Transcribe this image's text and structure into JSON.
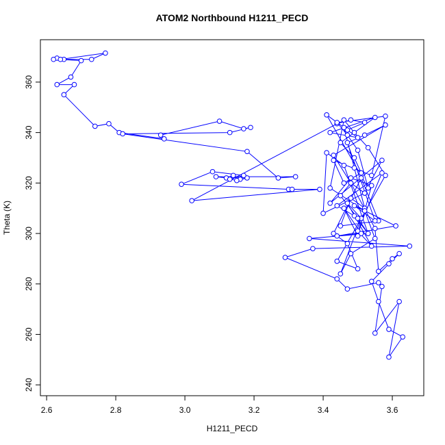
{
  "chart_data": {
    "type": "line",
    "title": "ATOM2 Northbound H1211_PECD",
    "x_label": "H1211_PECD",
    "y_label": "Theta (K)",
    "color": "#0000ff",
    "markers": true,
    "xlim": [
      2.582,
      3.691
    ],
    "ylim": [
      235.7,
      376.8
    ],
    "xticks": [
      {
        "value": 2.6,
        "label": "2.6"
      },
      {
        "value": 2.8,
        "label": "2.8"
      },
      {
        "value": 3.0,
        "label": "3.0"
      },
      {
        "value": 3.2,
        "label": "3.2"
      },
      {
        "value": 3.4,
        "label": "3.4"
      },
      {
        "value": 3.6,
        "label": "3.6"
      }
    ],
    "yticks": [
      240,
      260,
      280,
      300,
      320,
      340,
      360
    ],
    "x": [
      2.63,
      2.62,
      2.65,
      2.73,
      2.77,
      2.64,
      2.7,
      2.67,
      2.63,
      2.68,
      2.65,
      2.74,
      2.78,
      2.81,
      2.94,
      2.93,
      3.1,
      3.17,
      3.19,
      3.13,
      2.82,
      3.18,
      3.27,
      3.32,
      3.09,
      3.12,
      3.14,
      3.16,
      3.18,
      3.15,
      3.13,
      3.17,
      3.08,
      2.99,
      3.3,
      3.31,
      3.39,
      3.02,
      3.44,
      3.48,
      3.52,
      3.47,
      3.5,
      3.42,
      3.55,
      3.45,
      3.49,
      3.51,
      3.46,
      3.43,
      3.54,
      3.58,
      3.44,
      3.47,
      3.5,
      3.53,
      3.41,
      3.46,
      3.49,
      3.52,
      3.48,
      3.45,
      3.56,
      3.51,
      3.43,
      3.47,
      3.5,
      3.44,
      3.58,
      3.53,
      3.49,
      3.46,
      3.42,
      3.52,
      3.55,
      3.48,
      3.45,
      3.51,
      3.47,
      3.54,
      3.5,
      3.57,
      3.44,
      3.49,
      3.53,
      3.46,
      3.41,
      3.4,
      3.52,
      3.48,
      3.55,
      3.56,
      3.6,
      3.62,
      3.59,
      3.54,
      3.56,
      3.59,
      3.63,
      3.59,
      3.62,
      3.55,
      3.57,
      3.56,
      3.47,
      3.44,
      3.29,
      3.37,
      3.65,
      3.36,
      3.53,
      3.5,
      3.45,
      3.48,
      3.43,
      3.58,
      3.52,
      3.47,
      3.55,
      3.49,
      3.61,
      3.44,
      3.51,
      3.46,
      3.5,
      3.54,
      3.48,
      3.42,
      3.57,
      3.52
    ],
    "y": [
      369.5,
      369,
      369,
      369,
      371.5,
      369,
      368.5,
      362,
      359,
      359,
      355,
      342.5,
      343.5,
      340,
      337.5,
      339,
      344.5,
      341.5,
      342,
      340,
      339.5,
      332.5,
      322,
      322.5,
      322.5,
      322,
      323,
      321.5,
      322,
      321,
      321.5,
      323,
      324.5,
      319.5,
      317.5,
      317.5,
      317.5,
      313,
      343.5,
      345,
      344,
      341,
      338,
      340,
      346,
      336,
      330,
      324,
      320,
      329,
      323,
      346.5,
      344,
      339,
      333,
      318,
      347,
      342,
      326,
      310,
      314,
      303,
      305,
      322,
      300,
      296,
      286,
      289,
      323,
      334,
      340,
      345,
      318,
      309,
      298,
      292,
      284,
      306,
      312,
      295,
      301,
      324,
      311,
      307,
      300,
      327,
      332,
      308,
      316,
      320,
      302,
      285,
      290,
      292,
      288,
      281,
      273,
      262,
      259,
      251,
      273,
      260.5,
      279,
      280.5,
      278,
      282,
      290.5,
      294,
      295,
      298,
      300,
      306,
      315,
      320,
      331,
      343,
      339,
      336,
      305,
      311,
      303,
      299,
      300,
      310,
      299,
      319,
      322,
      312,
      329,
      316
    ]
  }
}
